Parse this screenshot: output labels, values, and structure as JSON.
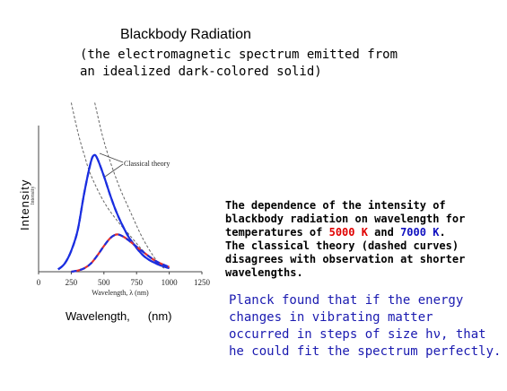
{
  "title": "Blackbody Radiation",
  "subtitle": [
    "(the electromagnetic spectrum emitted from",
    "an idealized dark-colored solid)"
  ],
  "figure": {
    "y_axis_label": "Intensity",
    "inner_y_label": "Intensity",
    "x_axis_label": "Wavelength,",
    "x_unit": "(nm)",
    "inner_x_label": "Wavelength, λ (nm)",
    "x_ticks": [
      "0",
      "250",
      "500",
      "750",
      "1000",
      "1250"
    ],
    "callout": "Classical theory"
  },
  "chart_data": {
    "type": "line",
    "xlabel": "Wavelength, λ (nm)",
    "ylabel": "Intensity",
    "xlim": [
      0,
      1250
    ],
    "ylim": [
      0,
      1
    ],
    "series": [
      {
        "name": "7000 K",
        "color": "#1a2ee0",
        "x": [
          150,
          200,
          250,
          300,
          350,
          400,
          425,
          450,
          500,
          550,
          600,
          650,
          700,
          800,
          900,
          1000
        ],
        "y": [
          0.02,
          0.07,
          0.18,
          0.36,
          0.68,
          0.94,
          1.0,
          0.97,
          0.82,
          0.65,
          0.5,
          0.38,
          0.28,
          0.14,
          0.07,
          0.03
        ]
      },
      {
        "name": "5000 K",
        "color": "#e03030",
        "x": [
          250,
          300,
          350,
          400,
          450,
          500,
          550,
          600,
          650,
          700,
          800,
          900,
          1000
        ],
        "y": [
          0.0,
          0.01,
          0.03,
          0.07,
          0.14,
          0.22,
          0.29,
          0.32,
          0.3,
          0.26,
          0.17,
          0.09,
          0.04
        ]
      }
    ],
    "classical_curves": [
      {
        "x": [
          250,
          300,
          350,
          400,
          500,
          600,
          700,
          800,
          900,
          960
        ],
        "y": [
          1.45,
          1.2,
          1.0,
          0.83,
          0.6,
          0.44,
          0.31,
          0.18,
          0.08,
          0.03
        ]
      },
      {
        "x": [
          430,
          500,
          600,
          700,
          800,
          900,
          960
        ],
        "y": [
          1.45,
          1.12,
          0.78,
          0.52,
          0.28,
          0.1,
          0.04
        ]
      }
    ]
  },
  "description": {
    "lines": [
      "The dependence of the intensity of",
      "blackbody radiation on wavelength for"
    ],
    "temp_prefix": "temperatures of ",
    "temp1": "5000 K",
    "temp_and": " and ",
    "temp2": "7000 K",
    "temp_suffix": ".",
    "rest": [
      "The classical theory (dashed curves)",
      "disagrees with observation at shorter",
      "wavelengths."
    ]
  },
  "planck": [
    "Planck found that if the energy",
    "changes in vibrating matter",
    "occurred in steps of size hν, that",
    "he could fit the spectrum perfectly."
  ]
}
